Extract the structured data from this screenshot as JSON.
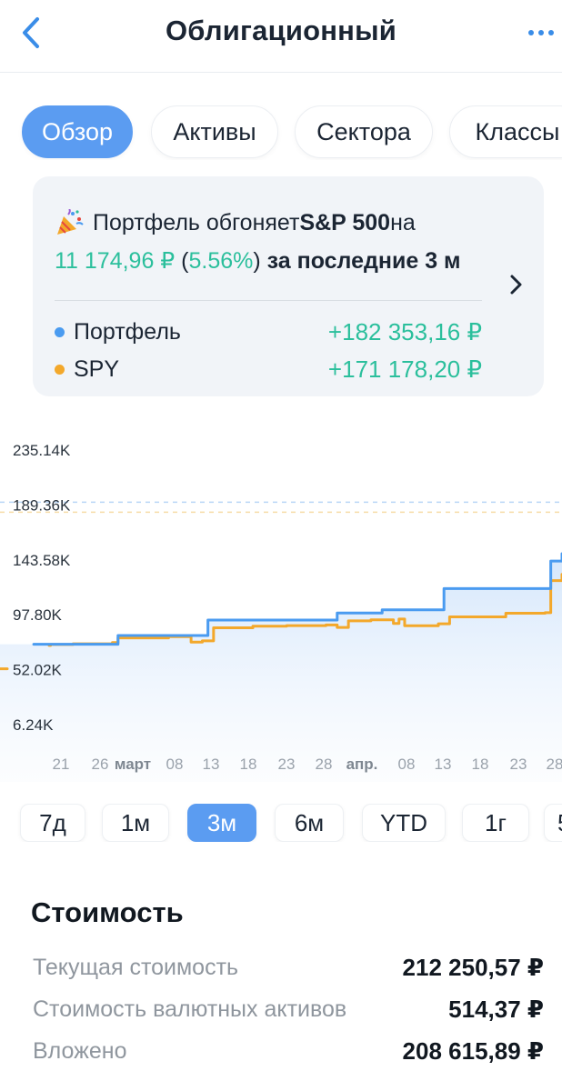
{
  "header": {
    "title": "Облигационный"
  },
  "tabs": [
    {
      "label": "Обзор",
      "active": true
    },
    {
      "label": "Активы",
      "active": false
    },
    {
      "label": "Сектора",
      "active": false
    },
    {
      "label": "Классы",
      "active": false
    }
  ],
  "card": {
    "line1_prefix": "Портфель обгоняет ",
    "line1_bold": "S&P 500",
    "line1_suffix": " на",
    "amount": "11 174,96 ₽",
    "percent_open": " (",
    "percent": "5.56%",
    "percent_close": ")",
    "line2_suffix": " за последние 3 м",
    "legend": [
      {
        "name": "Портфель",
        "value": "+182 353,16 ₽",
        "color": "#4a9bf0"
      },
      {
        "name": "SPY",
        "value": "+171 178,20 ₽",
        "color": "#f3a82b"
      }
    ]
  },
  "chart_data": {
    "type": "line",
    "y_ticks": [
      "235.14K",
      "189.36K",
      "143.58K",
      "97.80K",
      "52.02K",
      "6.24K"
    ],
    "x_ticks": [
      "21",
      "26",
      "март",
      "08",
      "13",
      "18",
      "23",
      "28",
      "апр.",
      "08",
      "13",
      "18",
      "23",
      "28"
    ],
    "ylim": [
      6240,
      235140
    ],
    "reference_line": 189360,
    "series": [
      {
        "name": "Портфель",
        "color": "#4a9bf0",
        "points": [
          [
            0,
            72500
          ],
          [
            0.06,
            72500
          ],
          [
            0.13,
            72500
          ],
          [
            0.2,
            72500
          ],
          [
            0.21,
            79800
          ],
          [
            0.3,
            79800
          ],
          [
            0.36,
            79800
          ],
          [
            0.37,
            92600
          ],
          [
            0.45,
            92600
          ],
          [
            0.58,
            92600
          ],
          [
            0.6,
            98500
          ],
          [
            0.66,
            98500
          ],
          [
            0.68,
            101200
          ],
          [
            0.78,
            101200
          ],
          [
            0.79,
            118900
          ],
          [
            0.9,
            118900
          ],
          [
            0.97,
            118900
          ],
          [
            0.98,
            141800
          ],
          [
            1.0,
            148000
          ]
        ]
      },
      {
        "name": "SPY",
        "color": "#f3a82b",
        "points": [
          [
            0,
            71500
          ],
          [
            0.09,
            72300
          ],
          [
            0.13,
            72800
          ],
          [
            0.2,
            73900
          ],
          [
            0.21,
            77800
          ],
          [
            0.3,
            78800
          ],
          [
            0.34,
            74300
          ],
          [
            0.36,
            75300
          ],
          [
            0.38,
            86200
          ],
          [
            0.45,
            87500
          ],
          [
            0.51,
            88000
          ],
          [
            0.58,
            88600
          ],
          [
            0.6,
            86500
          ],
          [
            0.62,
            92000
          ],
          [
            0.66,
            92800
          ],
          [
            0.7,
            89800
          ],
          [
            0.71,
            93500
          ],
          [
            0.72,
            87900
          ],
          [
            0.74,
            87900
          ],
          [
            0.78,
            89500
          ],
          [
            0.8,
            95300
          ],
          [
            0.9,
            98300
          ],
          [
            0.97,
            98800
          ],
          [
            0.98,
            125500
          ],
          [
            1.0,
            130700
          ]
        ]
      }
    ]
  },
  "ranges": [
    {
      "label": "7д",
      "active": false
    },
    {
      "label": "1м",
      "active": false
    },
    {
      "label": "3м",
      "active": true
    },
    {
      "label": "6м",
      "active": false
    },
    {
      "label": "YTD",
      "active": false
    },
    {
      "label": "1г",
      "active": false
    },
    {
      "label": "5",
      "active": false
    }
  ],
  "value": {
    "title": "Стоимость",
    "rows": [
      {
        "label": "Текущая стоимость",
        "value": "212 250,57 ₽"
      },
      {
        "label": "Стоимость валютных активов",
        "value": "514,37 ₽"
      },
      {
        "label": "Вложено",
        "value": "208 615,89 ₽"
      }
    ]
  }
}
